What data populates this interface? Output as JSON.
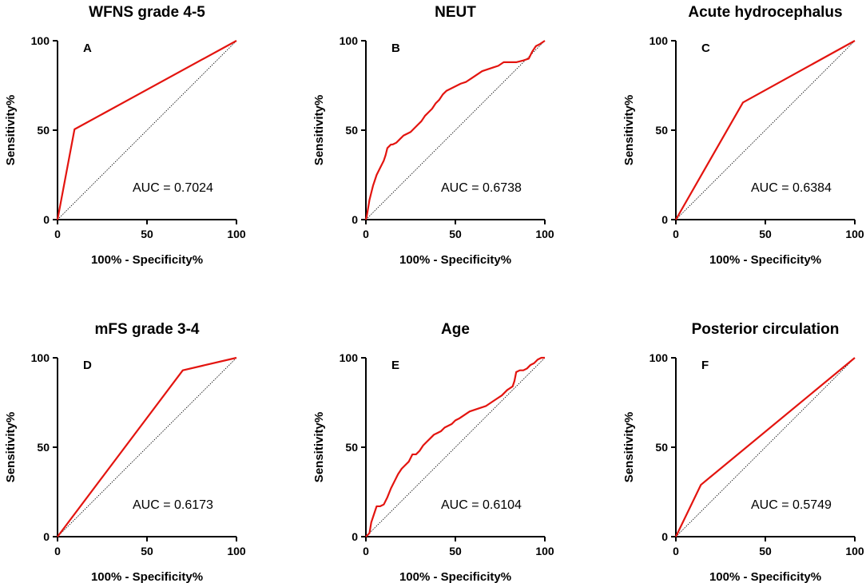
{
  "colors": {
    "roc": "#e3140f",
    "axis": "#000000"
  },
  "chart_data": [
    {
      "type": "line",
      "title": "WFNS grade 4-5",
      "panel_label": "A",
      "xlabel": "100% - Specificity%",
      "ylabel": "Sensitivity%",
      "xlim": [
        0,
        100
      ],
      "ylim": [
        0,
        100
      ],
      "xticks": [
        "0",
        "50",
        "100"
      ],
      "yticks": [
        "0",
        "50",
        "100"
      ],
      "annotation": "AUC = 0.7024",
      "x": [
        0,
        9.5,
        100
      ],
      "y": [
        0,
        50.5,
        100
      ],
      "reference_x": [
        0,
        100
      ],
      "reference_y": [
        0,
        100
      ]
    },
    {
      "type": "line",
      "title": "NEUT",
      "panel_label": "B",
      "xlabel": "100% - Specificity%",
      "ylabel": "Sensitivity%",
      "xlim": [
        0,
        100
      ],
      "ylim": [
        0,
        100
      ],
      "xticks": [
        "0",
        "50",
        "100"
      ],
      "yticks": [
        "0",
        "50",
        "100"
      ],
      "annotation": "AUC = 0.6738",
      "x": [
        0,
        0.5,
        1,
        1.5,
        2,
        3,
        4,
        5,
        6,
        7,
        8,
        9,
        10,
        11,
        12,
        13,
        14,
        15,
        17,
        19,
        21,
        23,
        25,
        27,
        29,
        31,
        33,
        35,
        37,
        39,
        41,
        43,
        45,
        47,
        49,
        51,
        53,
        56,
        59,
        62,
        65,
        68,
        71,
        74,
        77,
        80,
        84,
        88,
        91,
        93,
        95,
        97,
        100
      ],
      "y": [
        0,
        2,
        5,
        8,
        11,
        15,
        19,
        22,
        25,
        27,
        29,
        31,
        33,
        36,
        40,
        41,
        42,
        42,
        43,
        45,
        47,
        48,
        49,
        51,
        53,
        55,
        58,
        60,
        62,
        65,
        67,
        70,
        72,
        73,
        74,
        75,
        76,
        77,
        79,
        81,
        83,
        84,
        85,
        86,
        88,
        88,
        88,
        89,
        90,
        94,
        97,
        98,
        100
      ],
      "reference_x": [
        0,
        100
      ],
      "reference_y": [
        0,
        100
      ]
    },
    {
      "type": "line",
      "title": "Acute hydrocephalus",
      "panel_label": "C",
      "xlabel": "100% - Specificity%",
      "ylabel": "Sensitivity%",
      "xlim": [
        0,
        100
      ],
      "ylim": [
        0,
        100
      ],
      "xticks": [
        "0",
        "50",
        "100"
      ],
      "yticks": [
        "0",
        "50",
        "100"
      ],
      "annotation": "AUC = 0.6384",
      "x": [
        0,
        37.5,
        100
      ],
      "y": [
        0,
        65.5,
        100
      ],
      "reference_x": [
        0,
        100
      ],
      "reference_y": [
        0,
        100
      ]
    },
    {
      "type": "line",
      "title": "mFS grade 3-4",
      "panel_label": "D",
      "xlabel": "100% - Specificity%",
      "ylabel": "Sensitivity%",
      "xlim": [
        0,
        100
      ],
      "ylim": [
        0,
        100
      ],
      "xticks": [
        "0",
        "50",
        "100"
      ],
      "yticks": [
        "0",
        "50",
        "100"
      ],
      "annotation": "AUC = 0.6173",
      "x": [
        0,
        70,
        100
      ],
      "y": [
        0,
        93,
        100
      ],
      "reference_x": [
        0,
        100
      ],
      "reference_y": [
        0,
        100
      ]
    },
    {
      "type": "line",
      "title": "Age",
      "panel_label": "E",
      "xlabel": "100% - Specificity%",
      "ylabel": "Sensitivity%",
      "xlim": [
        0,
        100
      ],
      "ylim": [
        0,
        100
      ],
      "xticks": [
        "0",
        "50",
        "100"
      ],
      "yticks": [
        "0",
        "50",
        "100"
      ],
      "annotation": "AUC = 0.6104",
      "x": [
        0,
        2,
        3,
        4,
        5,
        6,
        8,
        10,
        12,
        14,
        16,
        18,
        20,
        22,
        24,
        26,
        28,
        30,
        32,
        34,
        36,
        38,
        40,
        42,
        44,
        46,
        48,
        50,
        52,
        55,
        58,
        61,
        64,
        67,
        70,
        73,
        76,
        79,
        82,
        83,
        84,
        86,
        88,
        90,
        92,
        94,
        96,
        98,
        100
      ],
      "y": [
        0,
        2,
        8,
        11,
        14,
        17,
        17,
        18,
        22,
        27,
        31,
        35,
        38,
        40,
        42,
        46,
        46,
        48,
        51,
        53,
        55,
        57,
        58,
        59,
        61,
        62,
        63,
        65,
        66,
        68,
        70,
        71,
        72,
        73,
        75,
        77,
        79,
        82,
        84,
        87,
        92,
        93,
        93,
        94,
        96,
        97,
        99,
        100,
        100
      ],
      "reference_x": [
        0,
        100
      ],
      "reference_y": [
        0,
        100
      ]
    },
    {
      "type": "line",
      "title": "Posterior circulation",
      "panel_label": "F",
      "xlabel": "100% - Specificity%",
      "ylabel": "Sensitivity%",
      "xlim": [
        0,
        100
      ],
      "ylim": [
        0,
        100
      ],
      "xticks": [
        "0",
        "50",
        "100"
      ],
      "yticks": [
        "0",
        "50",
        "100"
      ],
      "annotation": "AUC = 0.5749",
      "x": [
        0,
        14,
        100
      ],
      "y": [
        0,
        29,
        100
      ],
      "reference_x": [
        0,
        100
      ],
      "reference_y": [
        0,
        100
      ]
    }
  ]
}
